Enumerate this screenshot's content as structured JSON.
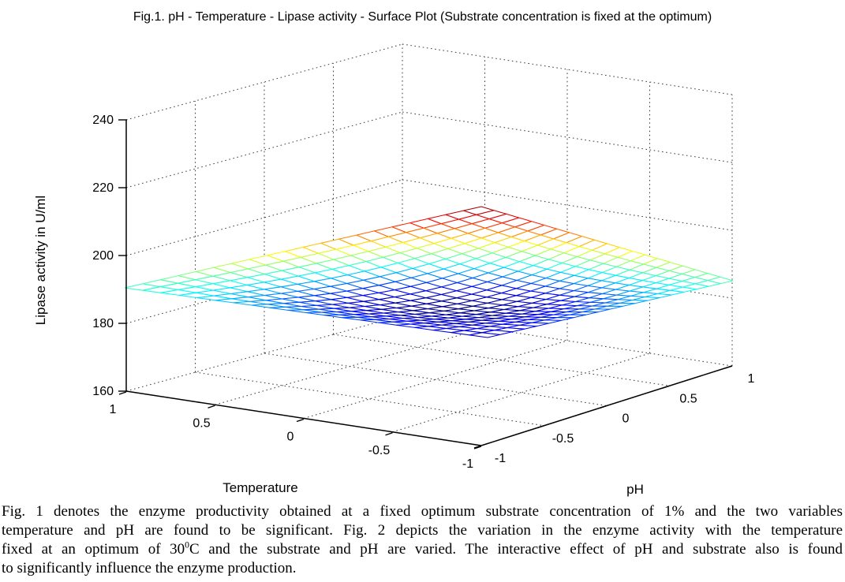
{
  "figure_title": "Fig.1. pH - Temperature - Lipase activity - Surface Plot (Substrate concentration is fixed at the optimum)",
  "axes": {
    "z": {
      "label": "Lipase activity in U/ml",
      "ticks": [
        "160",
        "180",
        "200",
        "220",
        "240"
      ]
    },
    "temperature": {
      "label": "Temperature",
      "ticks": [
        "1",
        "0.5",
        "0",
        "-0.5",
        "-1"
      ]
    },
    "ph": {
      "label": "pH",
      "ticks": [
        "-1",
        "-0.5",
        "0",
        "0.5",
        "1"
      ]
    }
  },
  "chart_data": {
    "type": "surface",
    "title": "Fig.1. pH - Temperature - Lipase activity - Surface Plot (Substrate concentration is fixed at the optimum)",
    "xlabel": "pH",
    "ylabel": "Temperature",
    "zlabel": "Lipase activity in U/ml",
    "x_ticks": [
      -1,
      -0.5,
      0,
      0.5,
      1
    ],
    "y_ticks": [
      1,
      0.5,
      0,
      -0.5,
      -1
    ],
    "z_ticks": [
      160,
      180,
      200,
      220,
      240
    ],
    "zlim": [
      160,
      240
    ],
    "xlim": [
      -1,
      1
    ],
    "ylim": [
      -1,
      1
    ],
    "grid": true,
    "colormap": "jet",
    "mesh_divisions": 20,
    "ph_values": [
      -1,
      -0.5,
      0,
      0.5,
      1
    ],
    "temperature_values": [
      -1,
      -0.5,
      0,
      0.5,
      1
    ],
    "z_grid_rows_by_temperature": [
      [
        176.0,
        180.0,
        184.0,
        188.0,
        192.0
      ],
      [
        179.8,
        175.3,
        176.0,
        184.3,
        197.8
      ],
      [
        183.5,
        175.8,
        175.5,
        185.8,
        203.5
      ],
      [
        187.3,
        183.8,
        185.5,
        194.8,
        209.3
      ],
      [
        191.0,
        197.0,
        203.0,
        209.0,
        215.0
      ]
    ],
    "z_displayed_min": 172,
    "z_displayed_max": 215,
    "surface_model": {
      "corner_values": {
        "front_ph-1_t-1": 176,
        "right_ph1_t-1": 192,
        "back_ph1_t1": 215,
        "left_ph-1_t1": 191
      },
      "valley_sag": 18
    }
  },
  "caption": {
    "line1": "Fig. 1 denotes the enzyme productivity obtained at a fixed optimum substrate concentration of 1% and the two variables",
    "line2": "temperature and pH are found to be significant. Fig. 2 depicts the variation in the enzyme activity with the temperature",
    "line3_before_sup": "fixed at an optimum of 30",
    "line3_sup": "0",
    "line3_after_sup": "C and the substrate and pH are varied. The interactive effect of pH and substrate also is found",
    "line4": "to significantly influence the enzyme production."
  }
}
